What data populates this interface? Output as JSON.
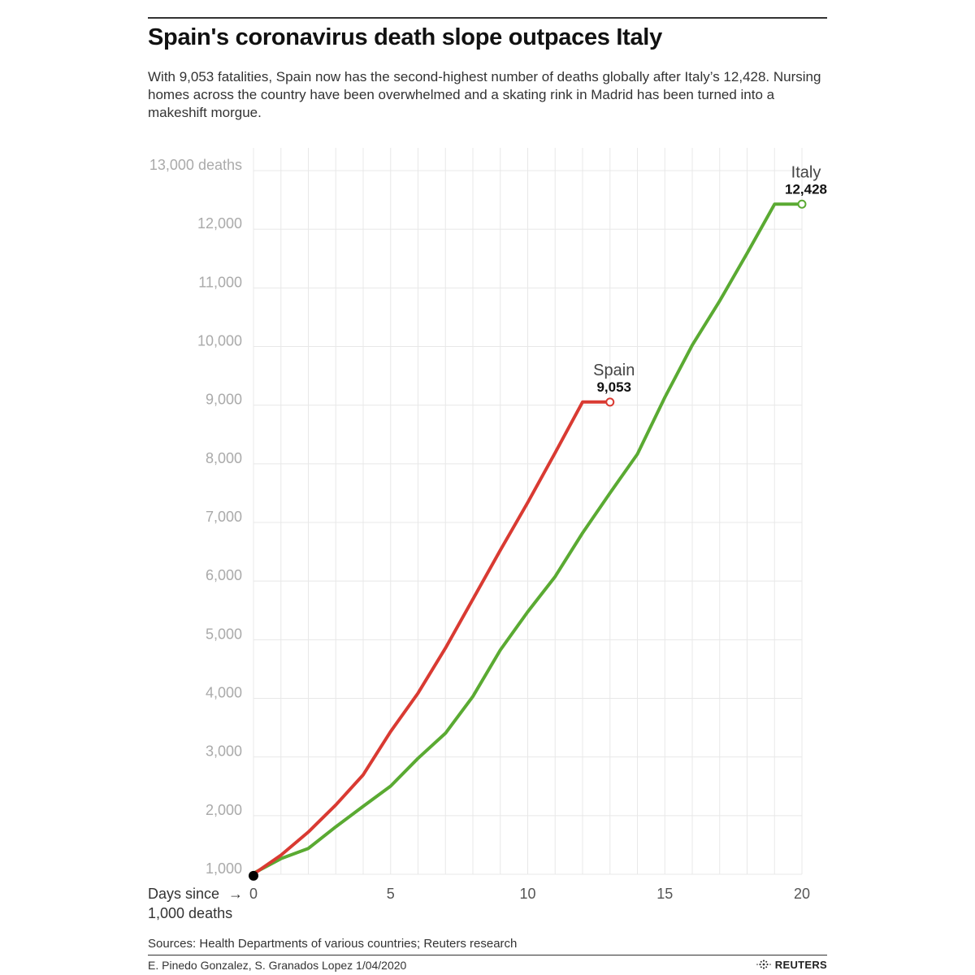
{
  "header": {
    "title": "Spain's coronavirus death slope outpaces Italy",
    "subtitle": "With 9,053 fatalities, Spain now has the second-highest number of deaths globally after Italy’s 12,428. Nursing homes across the country have been overwhelmed and a skating rink in Madrid has been turned into a makeshift morgue."
  },
  "chart_data": {
    "type": "line",
    "xlabel_line1": "Days since",
    "xlabel_line2": "1,000 deaths",
    "xlabel_arrow": "→",
    "xlim": [
      0,
      20
    ],
    "ylim": [
      1000,
      13000
    ],
    "yscale": "linear",
    "grid": true,
    "x_ticks": [
      0,
      5,
      10,
      15,
      20
    ],
    "x_tick_labels": [
      "0",
      "5",
      "10",
      "15",
      "20"
    ],
    "y_ticks": [
      1000,
      2000,
      3000,
      4000,
      5000,
      6000,
      7000,
      8000,
      9000,
      10000,
      11000,
      12000,
      13000
    ],
    "y_tick_labels": [
      "1,000",
      "2,000",
      "3,000",
      "4,000",
      "5,000",
      "6,000",
      "7,000",
      "8,000",
      "9,000",
      "10,000",
      "11,000",
      "12,000",
      "13,000 deaths"
    ],
    "series": [
      {
        "name": "Italy",
        "end_label": "12,428",
        "color": "#5aaa32",
        "x": [
          0,
          1,
          2,
          3,
          4,
          5,
          6,
          7,
          8,
          9,
          10,
          11,
          12,
          13,
          14,
          15,
          16,
          17,
          18,
          19,
          20
        ],
        "y": [
          1016,
          1266,
          1441,
          1809,
          2158,
          2503,
          2978,
          3405,
          4032,
          4825,
          5476,
          6077,
          6820,
          7503,
          8165,
          9134,
          10023,
          10779,
          11591,
          12428,
          12428
        ]
      },
      {
        "name": "Spain",
        "end_label": "9,053",
        "color": "#d93a32",
        "x": [
          0,
          1,
          2,
          3,
          4,
          5,
          6,
          7,
          8,
          9,
          10,
          11,
          12,
          13
        ],
        "y": [
          1002,
          1326,
          1720,
          2182,
          2696,
          3434,
          4089,
          4858,
          5690,
          6528,
          7340,
          8189,
          9053,
          9053
        ]
      }
    ],
    "start_marker_color": "#000000"
  },
  "footer": {
    "sources": "Sources: Health Departments of various countries; Reuters research",
    "credit": "E. Pinedo Gonzalez, S. Granados Lopez 1/04/2020",
    "logo_text": "REUTERS"
  }
}
